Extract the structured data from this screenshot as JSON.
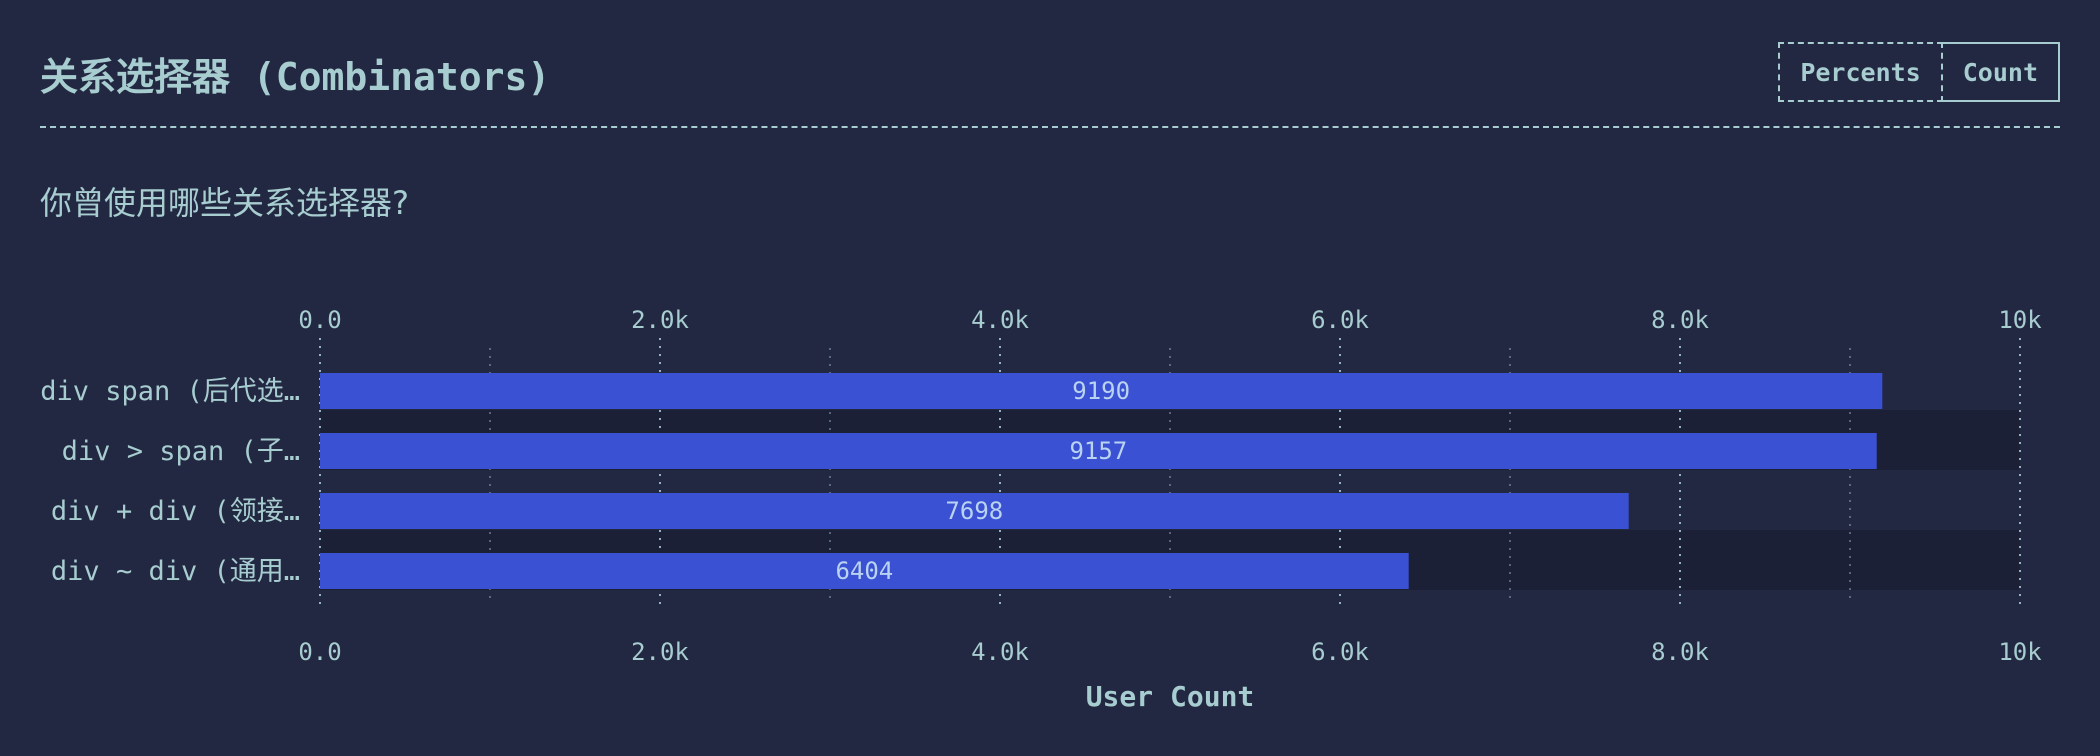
{
  "header": {
    "title": "关系选择器 (Combinators)",
    "toggle": {
      "percents_label": "Percents",
      "count_label": "Count",
      "active": "Count"
    }
  },
  "question": "你曾使用哪些关系选择器?",
  "colors": {
    "background": "#232842",
    "bar": "#3b51d4",
    "text": "#a7cdd0",
    "band_alt": "#1c2036"
  },
  "chart_data": {
    "type": "bar",
    "orientation": "horizontal",
    "categories": [
      "div span (后代选…",
      "div > span (子…",
      "div + div (领接…",
      "div ~ div (通用…"
    ],
    "values": [
      9190,
      9157,
      7698,
      6404
    ],
    "xlabel": "User Count",
    "xlim": [
      0,
      10000
    ],
    "ticks": [
      "0.0",
      "2.0k",
      "4.0k",
      "6.0k",
      "8.0k",
      "10k"
    ],
    "tick_values": [
      0,
      2000,
      4000,
      6000,
      8000,
      10000
    ],
    "minor_grid": true
  }
}
